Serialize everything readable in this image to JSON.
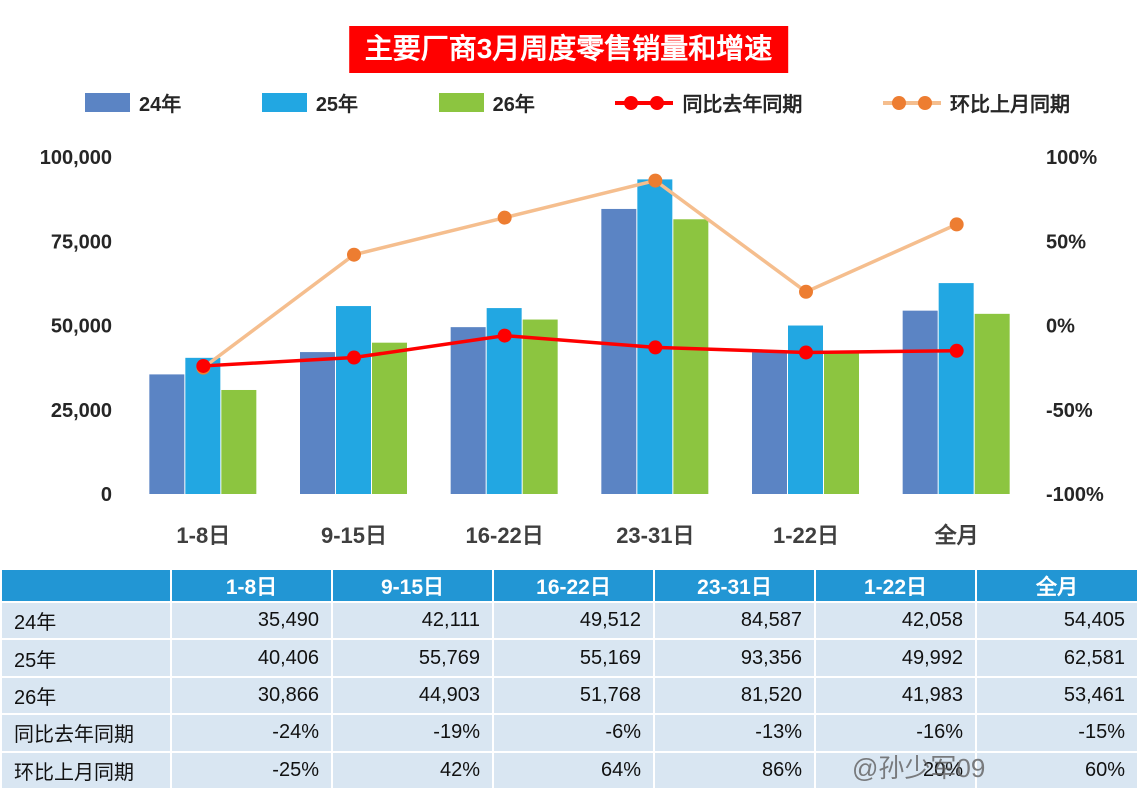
{
  "page": {
    "watermark": "@孙少军09"
  },
  "colors": {
    "title_bg": "#FF0000",
    "table_header_bg": "#2296D4",
    "table_row_bg": "#D9E6F2",
    "axis_text": "#262626",
    "category_text": "#3F3F3F"
  },
  "chart_data": {
    "type": "combo-bar-line",
    "title": "主要厂商3月周度零售销量和增速",
    "legend_position": "top",
    "grid": false,
    "categories": [
      "1-8日",
      "9-15日",
      "16-22日",
      "23-31日",
      "1-22日",
      "全月"
    ],
    "bar_series": [
      {
        "name": "24年",
        "color": "#5B84C4",
        "values": [
          35490,
          42111,
          49512,
          84587,
          42058,
          54405
        ]
      },
      {
        "name": "25年",
        "color": "#22A7E2",
        "values": [
          40406,
          55769,
          55169,
          93356,
          49992,
          62581
        ]
      },
      {
        "name": "26年",
        "color": "#8CC540",
        "values": [
          30866,
          44903,
          51768,
          81520,
          41983,
          53461
        ]
      }
    ],
    "line_series": [
      {
        "name": "环比上月同期",
        "color": "#F5BE8E",
        "marker_color": "#ED7D31",
        "values_pct": [
          -25,
          42,
          64,
          86,
          20,
          60
        ]
      },
      {
        "name": "同比去年同期",
        "color": "#FE0000",
        "marker_color": "#FE0000",
        "values_pct": [
          -24,
          -19,
          -6,
          -13,
          -16,
          -15
        ]
      }
    ],
    "left_axis": {
      "min": 0,
      "max": 100000,
      "ticks_top_to_bottom": [
        "100,000",
        "75,000",
        "50,000",
        "25,000",
        "0"
      ]
    },
    "right_axis": {
      "min": -100,
      "max": 100,
      "ticks_top_to_bottom": [
        "100%",
        "50%",
        "0%",
        "-50%",
        "-100%"
      ]
    }
  },
  "table": {
    "header": [
      "",
      "1-8日",
      "9-15日",
      "16-22日",
      "23-31日",
      "1-22日",
      "全月"
    ],
    "rows": [
      {
        "label": "24年",
        "values": [
          "35,490",
          "42,111",
          "49,512",
          "84,587",
          "42,058",
          "54,405"
        ]
      },
      {
        "label": "25年",
        "values": [
          "40,406",
          "55,769",
          "55,169",
          "93,356",
          "49,992",
          "62,581"
        ]
      },
      {
        "label": "26年",
        "values": [
          "30,866",
          "44,903",
          "51,768",
          "81,520",
          "41,983",
          "53,461"
        ]
      },
      {
        "label": "同比去年同期",
        "values": [
          "-24%",
          "-19%",
          "-6%",
          "-13%",
          "-16%",
          "-15%"
        ]
      },
      {
        "label": "环比上月同期",
        "values": [
          "-25%",
          "42%",
          "64%",
          "86%",
          "20%",
          "60%"
        ]
      }
    ]
  }
}
